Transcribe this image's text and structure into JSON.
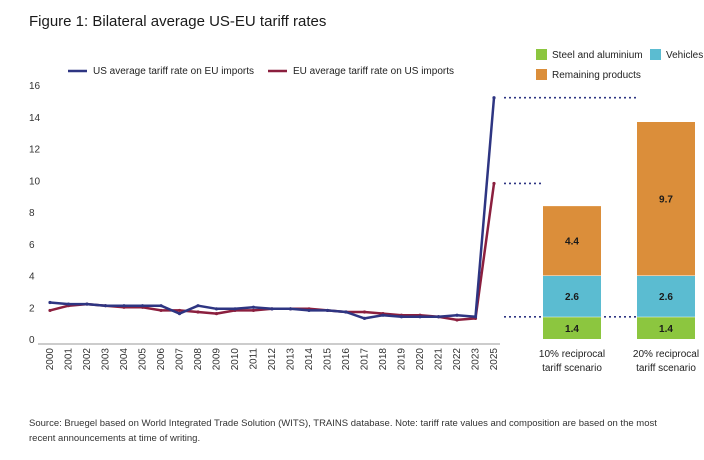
{
  "figure_title": "Figure 1: Bilateral average US-EU tariff rates",
  "source": "Source: Bruegel based on World Integrated Trade Solution (WITS), TRAINS database. Note: tariff rate values and composition are based on the most recent announcements at time of writing.",
  "colors": {
    "us_line": "#2e3582",
    "eu_line": "#8b1f3e",
    "steel": "#8cc63f",
    "vehicles": "#5bbcd1",
    "remaining": "#db8e3a"
  },
  "chart_data": [
    {
      "type": "line",
      "x": [
        "2000",
        "2001",
        "2002",
        "2003",
        "2004",
        "2005",
        "2006",
        "2007",
        "2008",
        "2009",
        "2010",
        "2011",
        "2012",
        "2013",
        "2014",
        "2015",
        "2016",
        "2017",
        "2018",
        "2019",
        "2020",
        "2021",
        "2022",
        "2023",
        "2025"
      ],
      "series": [
        {
          "name": "US average tariff rate on EU imports",
          "color_key": "us_line",
          "values": [
            2.3,
            2.2,
            2.2,
            2.1,
            2.1,
            2.1,
            2.1,
            1.6,
            2.1,
            1.9,
            1.9,
            2.0,
            1.9,
            1.9,
            1.8,
            1.8,
            1.7,
            1.3,
            1.5,
            1.4,
            1.4,
            1.4,
            1.5,
            1.4,
            15.2
          ]
        },
        {
          "name": "EU average tariff rate on US imports",
          "color_key": "eu_line",
          "values": [
            1.8,
            2.1,
            2.2,
            2.1,
            2.0,
            2.0,
            1.8,
            1.8,
            1.7,
            1.6,
            1.8,
            1.8,
            1.9,
            1.9,
            1.9,
            1.8,
            1.7,
            1.7,
            1.6,
            1.5,
            1.5,
            1.4,
            1.2,
            1.3,
            9.8
          ]
        }
      ],
      "ylim": [
        0,
        16
      ],
      "yticks": [
        0,
        2,
        4,
        6,
        8,
        10,
        12,
        14,
        16
      ],
      "grid": false
    },
    {
      "type": "bar",
      "stacked": true,
      "categories": [
        "10% reciprocal tariff scenario",
        "20% reciprocal tariff scenario"
      ],
      "category_lines": [
        [
          "10% reciprocal",
          "tariff scenario"
        ],
        [
          "20% reciprocal",
          "tariff scenario"
        ]
      ],
      "series": [
        {
          "name": "Steel and aluminium",
          "color_key": "steel",
          "values": [
            1.4,
            1.4
          ],
          "labels": [
            "1.4",
            "1.4"
          ]
        },
        {
          "name": "Vehicles",
          "color_key": "vehicles",
          "values": [
            2.6,
            2.6
          ],
          "labels": [
            "2.6",
            "2.6"
          ]
        },
        {
          "name": "Remaining products",
          "color_key": "remaining",
          "values": [
            4.4,
            9.7
          ],
          "labels": [
            "4.4",
            "9.7"
          ]
        }
      ],
      "ylim": [
        0,
        16
      ]
    }
  ]
}
